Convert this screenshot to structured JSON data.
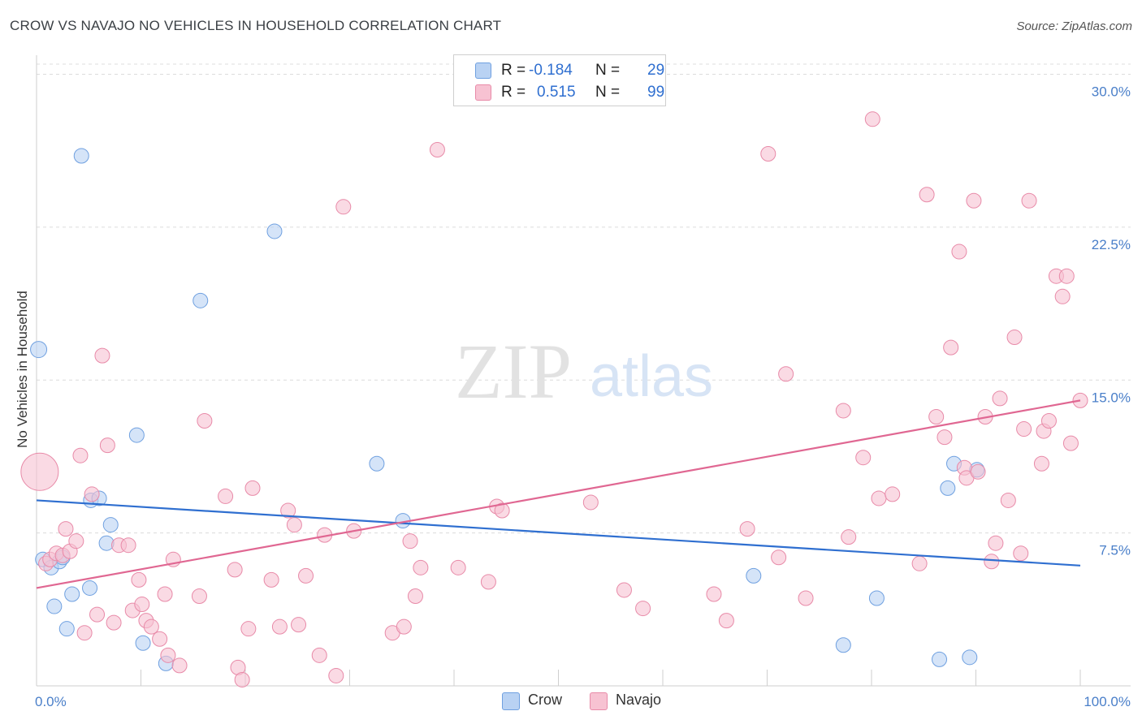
{
  "title": "CROW VS NAVAJO NO VEHICLES IN HOUSEHOLD CORRELATION CHART",
  "source": "Source: ZipAtlas.com",
  "watermark": {
    "zip": "ZIP",
    "atlas": "atlas"
  },
  "legend": {
    "rows": [
      {
        "r_label": "R =",
        "r_value": "-0.184",
        "n_label": "N =",
        "n_value": "29",
        "color": "#b9d2f3"
      },
      {
        "r_label": "R =",
        "r_value": "0.515",
        "n_label": "N =",
        "n_value": "99",
        "color": "#f7c2d2"
      }
    ]
  },
  "bottom_legend": [
    {
      "label": "Crow",
      "color": "#b9d2f3"
    },
    {
      "label": "Navajo",
      "color": "#f7c2d2"
    }
  ],
  "chart_data": {
    "type": "scatter",
    "title": "CROW VS NAVAJO NO VEHICLES IN HOUSEHOLD CORRELATION CHART",
    "xlabel": "",
    "ylabel": "No Vehicles in Household",
    "xlim": [
      0,
      100
    ],
    "ylim": [
      0,
      30.5
    ],
    "x_tick_labels": [
      "0.0%",
      "100.0%"
    ],
    "y_ticks": [
      7.5,
      15.0,
      22.5,
      30.0
    ],
    "y_tick_labels": [
      "7.5%",
      "15.0%",
      "22.5%",
      "30.0%"
    ],
    "series": [
      {
        "name": "Crow",
        "color": "#6fa0e0",
        "fill": "#b9d2f3",
        "trend": {
          "x": [
            0,
            100
          ],
          "y": [
            9.1,
            5.9
          ],
          "color": "#2f6fd0"
        },
        "points": [
          [
            0.2,
            16.5
          ],
          [
            0.6,
            6.2
          ],
          [
            1.4,
            5.8
          ],
          [
            1.7,
            3.9
          ],
          [
            2.2,
            6.1
          ],
          [
            2.5,
            6.3
          ],
          [
            2.9,
            2.8
          ],
          [
            3.4,
            4.5
          ],
          [
            4.3,
            26.0
          ],
          [
            5.1,
            4.8
          ],
          [
            5.2,
            9.1
          ],
          [
            6.0,
            9.2
          ],
          [
            6.7,
            7.0
          ],
          [
            7.1,
            7.9
          ],
          [
            9.6,
            12.3
          ],
          [
            10.2,
            2.1
          ],
          [
            12.4,
            1.1
          ],
          [
            15.7,
            18.9
          ],
          [
            22.8,
            22.3
          ],
          [
            32.6,
            10.9
          ],
          [
            35.1,
            8.1
          ],
          [
            68.7,
            5.4
          ],
          [
            77.3,
            2.0
          ],
          [
            80.5,
            4.3
          ],
          [
            86.5,
            1.3
          ],
          [
            87.3,
            9.7
          ],
          [
            87.9,
            10.9
          ],
          [
            89.4,
            1.4
          ],
          [
            90.1,
            10.6
          ]
        ]
      },
      {
        "name": "Navajo",
        "color": "#e88aa8",
        "fill": "#f7c2d2",
        "trend": {
          "x": [
            0,
            100
          ],
          "y": [
            4.8,
            14.0
          ],
          "color": "#e06792"
        },
        "points": [
          [
            0.3,
            10.5
          ],
          [
            0.9,
            6.0
          ],
          [
            1.3,
            6.2
          ],
          [
            1.9,
            6.5
          ],
          [
            2.5,
            6.4
          ],
          [
            2.8,
            7.7
          ],
          [
            3.2,
            6.6
          ],
          [
            3.8,
            7.1
          ],
          [
            4.2,
            11.3
          ],
          [
            4.6,
            2.6
          ],
          [
            5.3,
            9.4
          ],
          [
            5.8,
            3.5
          ],
          [
            6.3,
            16.2
          ],
          [
            6.8,
            11.8
          ],
          [
            7.4,
            3.1
          ],
          [
            7.9,
            6.9
          ],
          [
            8.8,
            6.9
          ],
          [
            9.2,
            3.7
          ],
          [
            9.8,
            5.2
          ],
          [
            10.1,
            4.0
          ],
          [
            10.5,
            3.2
          ],
          [
            11.0,
            2.9
          ],
          [
            11.8,
            2.3
          ],
          [
            12.3,
            4.5
          ],
          [
            12.6,
            1.5
          ],
          [
            13.1,
            6.2
          ],
          [
            13.7,
            1.0
          ],
          [
            15.6,
            4.4
          ],
          [
            16.1,
            13.0
          ],
          [
            18.1,
            9.3
          ],
          [
            19.0,
            5.7
          ],
          [
            19.3,
            0.9
          ],
          [
            19.7,
            0.3
          ],
          [
            20.3,
            2.8
          ],
          [
            20.7,
            9.7
          ],
          [
            22.5,
            5.2
          ],
          [
            23.3,
            2.9
          ],
          [
            24.1,
            8.6
          ],
          [
            24.7,
            7.9
          ],
          [
            25.1,
            3.0
          ],
          [
            25.8,
            5.4
          ],
          [
            27.1,
            1.5
          ],
          [
            27.6,
            7.4
          ],
          [
            28.7,
            0.5
          ],
          [
            29.4,
            23.5
          ],
          [
            30.4,
            7.6
          ],
          [
            34.1,
            2.6
          ],
          [
            35.2,
            2.9
          ],
          [
            35.8,
            7.1
          ],
          [
            36.3,
            4.4
          ],
          [
            36.8,
            5.8
          ],
          [
            38.4,
            26.3
          ],
          [
            40.4,
            5.8
          ],
          [
            43.3,
            5.1
          ],
          [
            44.1,
            8.8
          ],
          [
            44.6,
            8.6
          ],
          [
            53.1,
            9.0
          ],
          [
            56.3,
            4.7
          ],
          [
            58.1,
            3.8
          ],
          [
            64.9,
            4.5
          ],
          [
            66.1,
            3.2
          ],
          [
            68.1,
            7.7
          ],
          [
            70.1,
            26.1
          ],
          [
            71.1,
            6.3
          ],
          [
            71.8,
            15.3
          ],
          [
            73.7,
            4.3
          ],
          [
            77.3,
            13.5
          ],
          [
            77.8,
            7.3
          ],
          [
            79.2,
            11.2
          ],
          [
            80.1,
            27.8
          ],
          [
            80.7,
            9.2
          ],
          [
            82.0,
            9.4
          ],
          [
            84.6,
            6.0
          ],
          [
            85.3,
            24.1
          ],
          [
            86.2,
            13.2
          ],
          [
            87.0,
            12.2
          ],
          [
            87.6,
            16.6
          ],
          [
            88.4,
            21.3
          ],
          [
            88.9,
            10.7
          ],
          [
            89.1,
            10.2
          ],
          [
            89.8,
            23.8
          ],
          [
            90.2,
            10.5
          ],
          [
            90.9,
            13.2
          ],
          [
            91.5,
            6.1
          ],
          [
            91.9,
            7.0
          ],
          [
            92.3,
            14.1
          ],
          [
            93.1,
            9.1
          ],
          [
            93.7,
            17.1
          ],
          [
            94.3,
            6.5
          ],
          [
            94.6,
            12.6
          ],
          [
            95.1,
            23.8
          ],
          [
            96.3,
            10.9
          ],
          [
            96.5,
            12.5
          ],
          [
            97.0,
            13.0
          ],
          [
            97.7,
            20.1
          ],
          [
            98.3,
            19.1
          ],
          [
            98.7,
            20.1
          ],
          [
            99.1,
            11.9
          ],
          [
            100.0,
            14.0
          ]
        ]
      }
    ]
  }
}
